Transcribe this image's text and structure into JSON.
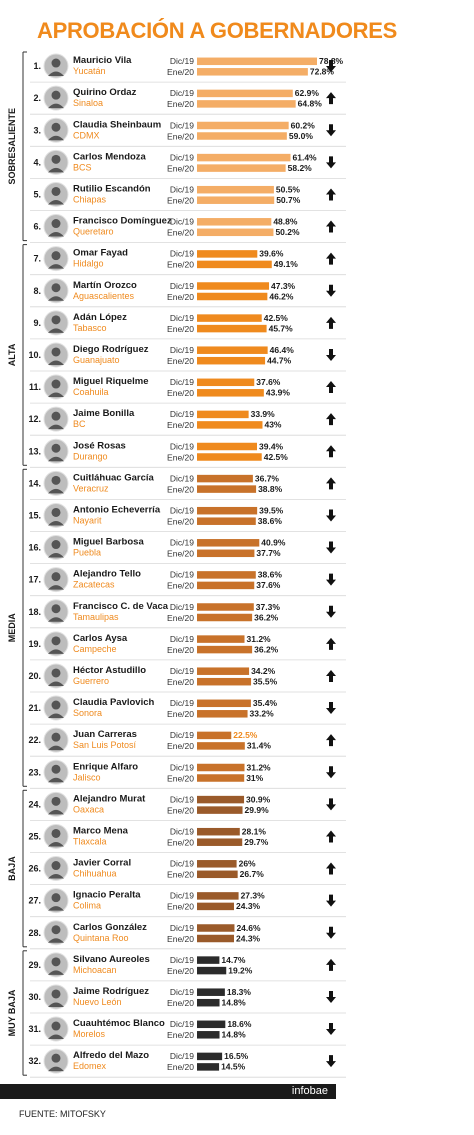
{
  "title": "APROBACIÓN A GOBERNADORES",
  "source": "FUENTE: MITOFSKY",
  "brand": "infobae",
  "period_labels": [
    "Dic/19",
    "Ene/20"
  ],
  "colors": {
    "Sobresaliente": [
      "#f4ad66",
      "#f4ad66"
    ],
    "Alta": [
      "#ef8a1e",
      "#ef8a1e"
    ],
    "Media": [
      "#c8722a",
      "#c8722a"
    ],
    "Baja": [
      "#9a5a2a",
      "#9a5a2a"
    ],
    "Muy Baja": [
      "#2b2b2b",
      "#2b2b2b"
    ]
  },
  "chart_data": {
    "type": "bar",
    "title": "APROBACIÓN A GOBERNADORES",
    "series_labels": [
      "Dic/19",
      "Ene/20"
    ],
    "groups": [
      {
        "name": "Sobresaliente",
        "rows": [
          1,
          6
        ]
      },
      {
        "name": "Alta",
        "rows": [
          7,
          13
        ]
      },
      {
        "name": "Media",
        "rows": [
          14,
          23
        ]
      },
      {
        "name": "Baja",
        "rows": [
          24,
          28
        ]
      },
      {
        "name": "Muy Baja",
        "rows": [
          29,
          32
        ]
      }
    ],
    "rows": [
      {
        "rank": "1.",
        "name": "Mauricio Vila",
        "state": "Yucatán",
        "dic": 78.8,
        "ene": 72.8,
        "dic_label": "78.8%",
        "ene_label": "72.8%",
        "trend": "down",
        "group": "Sobresaliente"
      },
      {
        "rank": "2.",
        "name": "Quirino Ordaz",
        "state": "Sinaloa",
        "dic": 62.9,
        "ene": 64.8,
        "dic_label": "62.9%",
        "ene_label": "64.8%",
        "trend": "up",
        "group": "Sobresaliente"
      },
      {
        "rank": "3.",
        "name": "Claudia Sheinbaum",
        "state": "CDMX",
        "dic": 60.2,
        "ene": 59.0,
        "dic_label": "60.2%",
        "ene_label": "59.0%",
        "trend": "down",
        "group": "Sobresaliente"
      },
      {
        "rank": "4.",
        "name": "Carlos Mendoza",
        "state": "BCS",
        "dic": 61.4,
        "ene": 58.2,
        "dic_label": "61.4%",
        "ene_label": "58.2%",
        "trend": "down",
        "group": "Sobresaliente"
      },
      {
        "rank": "5.",
        "name": "Rutilio Escandón",
        "state": "Chiapas",
        "dic": 50.5,
        "ene": 50.7,
        "dic_label": "50.5%",
        "ene_label": "50.7%",
        "trend": "up",
        "group": "Sobresaliente"
      },
      {
        "rank": "6.",
        "name": "Francisco Domínguez",
        "state": "Queretaro",
        "dic": 48.8,
        "ene": 50.2,
        "dic_label": "48.8%",
        "ene_label": "50.2%",
        "trend": "up",
        "group": "Sobresaliente"
      },
      {
        "rank": "7.",
        "name": "Omar Fayad",
        "state": "Hidalgo",
        "dic": 39.6,
        "ene": 49.1,
        "dic_label": "39.6%",
        "ene_label": "49.1%",
        "trend": "up",
        "group": "Alta"
      },
      {
        "rank": "8.",
        "name": "Martín Orozco",
        "state": "Aguascalientes",
        "dic": 47.3,
        "ene": 46.2,
        "dic_label": "47.3%",
        "ene_label": "46.2%",
        "trend": "down",
        "group": "Alta"
      },
      {
        "rank": "9.",
        "name": "Adán López",
        "state": "Tabasco",
        "dic": 42.5,
        "ene": 45.7,
        "dic_label": "42.5%",
        "ene_label": "45.7%",
        "trend": "up",
        "group": "Alta"
      },
      {
        "rank": "10.",
        "name": "Diego Rodríguez",
        "state": "Guanajuato",
        "dic": 46.4,
        "ene": 44.7,
        "dic_label": "46.4%",
        "ene_label": "44.7%",
        "trend": "down",
        "group": "Alta"
      },
      {
        "rank": "11.",
        "name": "Miguel Riquelme",
        "state": "Coahuila",
        "dic": 37.6,
        "ene": 43.9,
        "dic_label": "37.6%",
        "ene_label": "43.9%",
        "trend": "up",
        "group": "Alta"
      },
      {
        "rank": "12.",
        "name": "Jaime Bonilla",
        "state": "BC",
        "dic": 33.9,
        "ene": 43,
        "dic_label": "33.9%",
        "ene_label": "43%",
        "trend": "up",
        "group": "Alta"
      },
      {
        "rank": "13.",
        "name": "José Rosas",
        "state": "Durango",
        "dic": 39.4,
        "ene": 42.5,
        "dic_label": "39.4%",
        "ene_label": "42.5%",
        "trend": "up",
        "group": "Alta"
      },
      {
        "rank": "14.",
        "name": "Cuitláhuac García",
        "state": "Veracruz",
        "dic": 36.7,
        "ene": 38.8,
        "dic_label": "36.7%",
        "ene_label": "38.8%",
        "trend": "up",
        "group": "Media"
      },
      {
        "rank": "15.",
        "name": "Antonio Echeverría",
        "state": "Nayarit",
        "dic": 39.5,
        "ene": 38.6,
        "dic_label": "39.5%",
        "ene_label": "38.6%",
        "trend": "down",
        "group": "Media"
      },
      {
        "rank": "16.",
        "name": "Miguel Barbosa",
        "state": "Puebla",
        "dic": 40.9,
        "ene": 37.7,
        "dic_label": "40.9%",
        "ene_label": "37.7%",
        "trend": "down",
        "group": "Media"
      },
      {
        "rank": "17.",
        "name": "Alejandro Tello",
        "state": "Zacatecas",
        "dic": 38.6,
        "ene": 37.6,
        "dic_label": "38.6%",
        "ene_label": "37.6%",
        "trend": "down",
        "group": "Media"
      },
      {
        "rank": "18.",
        "name": "Francisco C. de Vaca",
        "state": "Tamaulipas",
        "dic": 37.3,
        "ene": 36.2,
        "dic_label": "37.3%",
        "ene_label": "36.2%",
        "trend": "down",
        "group": "Media"
      },
      {
        "rank": "19.",
        "name": "Carlos Aysa",
        "state": "Campeche",
        "dic": 31.2,
        "ene": 36.2,
        "dic_label": "31.2%",
        "ene_label": "36.2%",
        "trend": "up",
        "group": "Media"
      },
      {
        "rank": "20.",
        "name": "Héctor Astudillo",
        "state": "Guerrero",
        "dic": 34.2,
        "ene": 35.5,
        "dic_label": "34.2%",
        "ene_label": "35.5%",
        "trend": "up",
        "group": "Media"
      },
      {
        "rank": "21.",
        "name": "Claudia Pavlovich",
        "state": "Sonora",
        "dic": 35.4,
        "ene": 33.2,
        "dic_label": "35.4%",
        "ene_label": "33.2%",
        "trend": "down",
        "group": "Media"
      },
      {
        "rank": "22.",
        "name": "Juan Carreras",
        "state": "San Luis Potosí",
        "dic": 22.5,
        "ene": 31.4,
        "dic_label": "22.5%",
        "ene_label": "31.4%",
        "trend": "up",
        "group": "Media",
        "dic_highlight": true
      },
      {
        "rank": "23.",
        "name": "Enrique Alfaro",
        "state": "Jalisco",
        "dic": 31.2,
        "ene": 31,
        "dic_label": "31.2%",
        "ene_label": "31%",
        "trend": "down",
        "group": "Media"
      },
      {
        "rank": "24.",
        "name": "Alejandro Murat",
        "state": "Oaxaca",
        "dic": 30.9,
        "ene": 29.9,
        "dic_label": "30.9%",
        "ene_label": "29.9%",
        "trend": "down",
        "group": "Baja"
      },
      {
        "rank": "25.",
        "name": "Marco Mena",
        "state": "Tlaxcala",
        "dic": 28.1,
        "ene": 29.7,
        "dic_label": "28.1%",
        "ene_label": "29.7%",
        "trend": "up",
        "group": "Baja"
      },
      {
        "rank": "26.",
        "name": "Javier Corral",
        "state": "Chihuahua",
        "dic": 26,
        "ene": 26.7,
        "dic_label": "26%",
        "ene_label": "26.7%",
        "trend": "up",
        "group": "Baja"
      },
      {
        "rank": "27.",
        "name": "Ignacio Peralta",
        "state": "Colima",
        "dic": 27.3,
        "ene": 24.3,
        "dic_label": "27.3%",
        "ene_label": "24.3%",
        "trend": "down",
        "group": "Baja"
      },
      {
        "rank": "28.",
        "name": "Carlos González",
        "state": "Quintana Roo",
        "dic": 24.6,
        "ene": 24.3,
        "dic_label": "24.6%",
        "ene_label": "24.3%",
        "trend": "down",
        "group": "Baja"
      },
      {
        "rank": "29.",
        "name": "Silvano Aureoles",
        "state": "Michoacan",
        "dic": 14.7,
        "ene": 19.2,
        "dic_label": "14.7%",
        "ene_label": "19.2%",
        "trend": "up",
        "group": "Muy Baja"
      },
      {
        "rank": "30.",
        "name": "Jaime Rodríguez",
        "state": "Nuevo León",
        "dic": 18.3,
        "ene": 14.8,
        "dic_label": "18.3%",
        "ene_label": "14.8%",
        "trend": "down",
        "group": "Muy Baja"
      },
      {
        "rank": "31.",
        "name": "Cuauhtémoc Blanco",
        "state": "Morelos",
        "dic": 18.6,
        "ene": 14.8,
        "dic_label": "18.6%",
        "ene_label": "14.8%",
        "trend": "down",
        "group": "Muy Baja"
      },
      {
        "rank": "32.",
        "name": "Alfredo del Mazo",
        "state": "Edomex",
        "dic": 16.5,
        "ene": 14.5,
        "dic_label": "16.5%",
        "ene_label": "14.5%",
        "trend": "down",
        "group": "Muy Baja"
      }
    ]
  }
}
